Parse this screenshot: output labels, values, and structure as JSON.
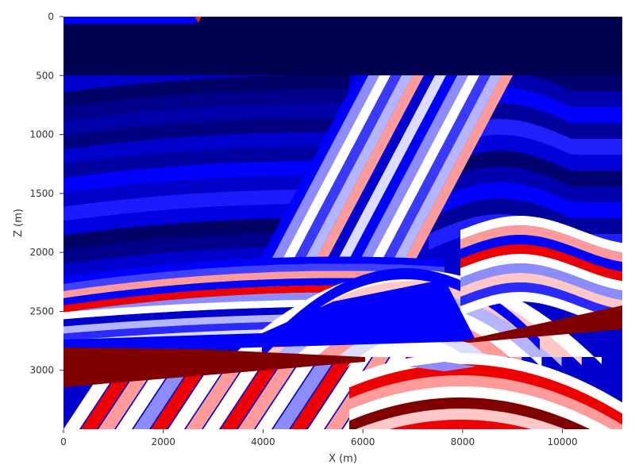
{
  "chart_data": {
    "type": "heatmap",
    "title": "",
    "xlabel": "X (m)",
    "ylabel": "Z (m)",
    "xlim": [
      0,
      11200
    ],
    "ylim": [
      0,
      3500
    ],
    "y_inverted": true,
    "x_ticks": [
      0,
      2000,
      4000,
      6000,
      8000,
      10000
    ],
    "y_ticks": [
      0,
      500,
      1000,
      1500,
      2000,
      2500,
      3000
    ],
    "x_tick_labels": [
      "0",
      "2000",
      "4000",
      "6000",
      "8000",
      "10000"
    ],
    "y_tick_labels": [
      "0",
      "500",
      "1000",
      "1500",
      "2000",
      "2500",
      "3000"
    ],
    "colormap": "seismic (blue-white-red)",
    "grid": false,
    "legend": "none",
    "source_marker": {
      "x": 2700,
      "z": 20,
      "color": "#d62728"
    },
    "colors": {
      "dark_blue": "#000055",
      "blue": "#0000ff",
      "light_blue": "#8c8cff",
      "white": "#ffffff",
      "light_red": "#ff9a9a",
      "red": "#ee0000",
      "dark_red": "#800000"
    }
  }
}
